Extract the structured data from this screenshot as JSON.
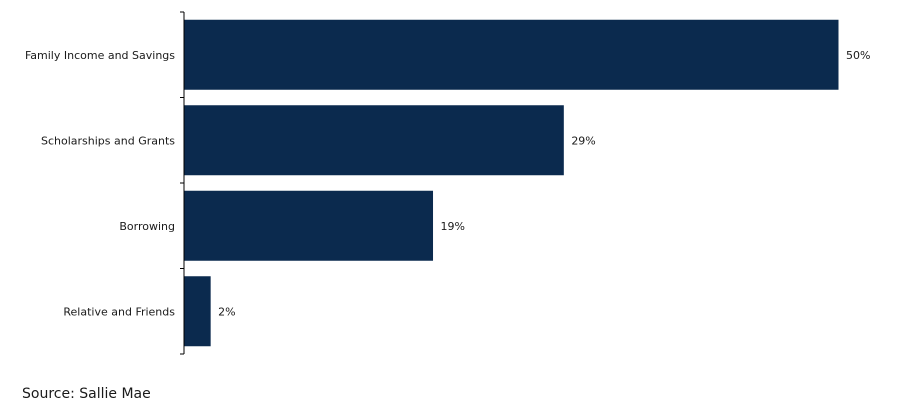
{
  "chart_data": {
    "type": "bar",
    "orientation": "horizontal",
    "categories": [
      "Family Income and Savings",
      "Scholarships and Grants",
      "Borrowing",
      "Relative and Friends"
    ],
    "values": [
      50,
      29,
      19,
      2
    ],
    "value_labels": [
      "50%",
      "29%",
      "19%",
      "2%"
    ],
    "unit": "%",
    "xlim": [
      0,
      54
    ],
    "bar_color": "#0b2a4e",
    "grid": false,
    "legend": "none"
  },
  "source_text": "Source: Sallie Mae"
}
